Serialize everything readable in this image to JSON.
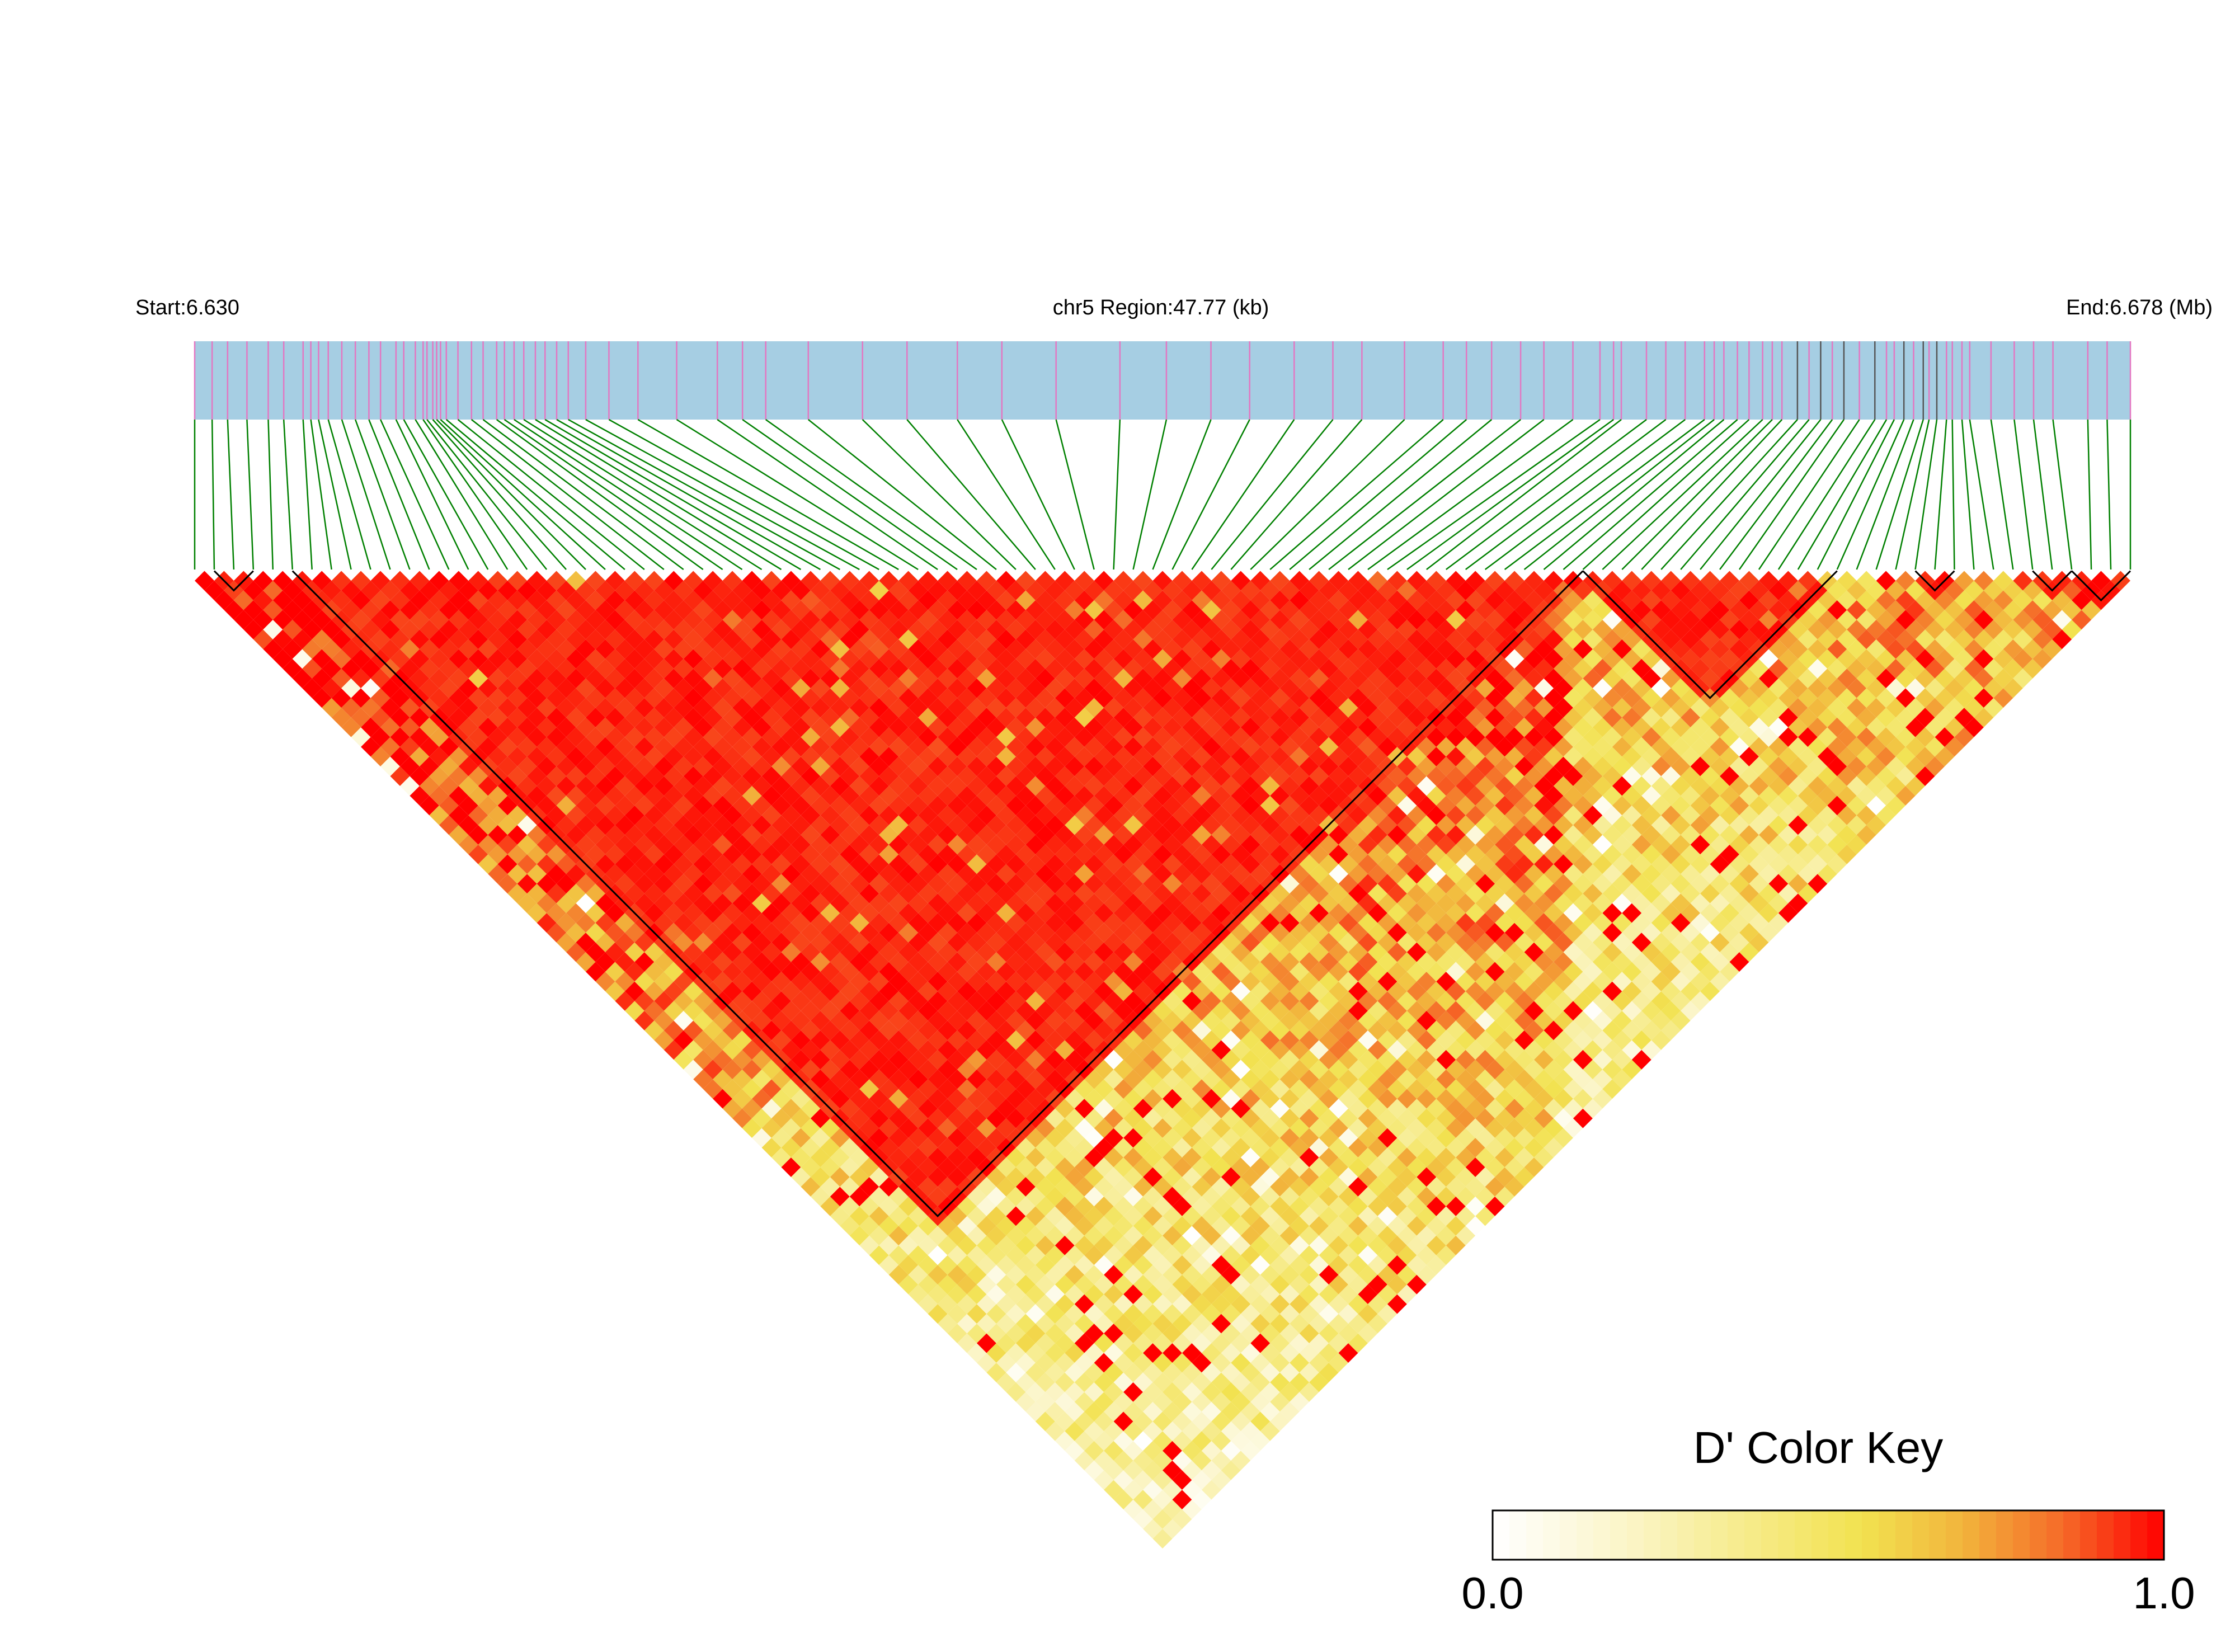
{
  "header": {
    "start_label": "Start:6.630",
    "region_label": "chr5 Region:47.77 (kb)",
    "end_label": "End:6.678 (Mb)"
  },
  "legend": {
    "title": "D' Color Key",
    "min_label": "0.0",
    "max_label": "1.0",
    "colors": [
      "#ffffff",
      "#fbf5c8",
      "#f2e250",
      "#f2b43c",
      "#f56a28",
      "#ff0000"
    ]
  },
  "colors": {
    "track_fill": "#a6cee3",
    "snp_tick": "#e377c2",
    "snp_tick_dark": "#555555",
    "connector": "#008000",
    "block_outline": "#000000"
  },
  "chart_data": {
    "type": "heatmap",
    "metric": "D'",
    "region_start_mb": 6.63,
    "region_end_mb": 6.678,
    "region_length_kb": 47.77,
    "snp_count": 100,
    "snp_positions_rel": [
      0,
      0.009,
      0.017,
      0.027,
      0.038,
      0.046,
      0.056,
      0.06,
      0.064,
      0.069,
      0.076,
      0.083,
      0.09,
      0.096,
      0.104,
      0.108,
      0.114,
      0.118,
      0.12,
      0.123,
      0.125,
      0.127,
      0.13,
      0.136,
      0.143,
      0.149,
      0.156,
      0.16,
      0.165,
      0.17,
      0.176,
      0.181,
      0.187,
      0.193,
      0.202,
      0.214,
      0.229,
      0.249,
      0.27,
      0.283,
      0.295,
      0.317,
      0.345,
      0.368,
      0.394,
      0.417,
      0.445,
      0.478,
      0.502,
      0.525,
      0.545,
      0.568,
      0.588,
      0.603,
      0.625,
      0.645,
      0.657,
      0.67,
      0.685,
      0.697,
      0.712,
      0.726,
      0.733,
      0.737,
      0.75,
      0.76,
      0.77,
      0.78,
      0.785,
      0.79,
      0.797,
      0.803,
      0.81,
      0.815,
      0.82,
      0.828,
      0.834,
      0.84,
      0.846,
      0.852,
      0.86,
      0.868,
      0.874,
      0.878,
      0.883,
      0.888,
      0.893,
      0.896,
      0.9,
      0.905,
      0.908,
      0.913,
      0.917,
      0.928,
      0.94,
      0.95,
      0.96,
      0.978,
      0.988,
      1
    ],
    "dark_tick_indices": [
      75,
      77,
      79,
      81,
      84,
      86,
      88
    ],
    "ld_blocks": [
      [
        1,
        3
      ],
      [
        5,
        71
      ],
      [
        71,
        84
      ],
      [
        88,
        90
      ],
      [
        94,
        96
      ],
      [
        96,
        99
      ]
    ],
    "value_range": [
      0,
      1
    ]
  }
}
